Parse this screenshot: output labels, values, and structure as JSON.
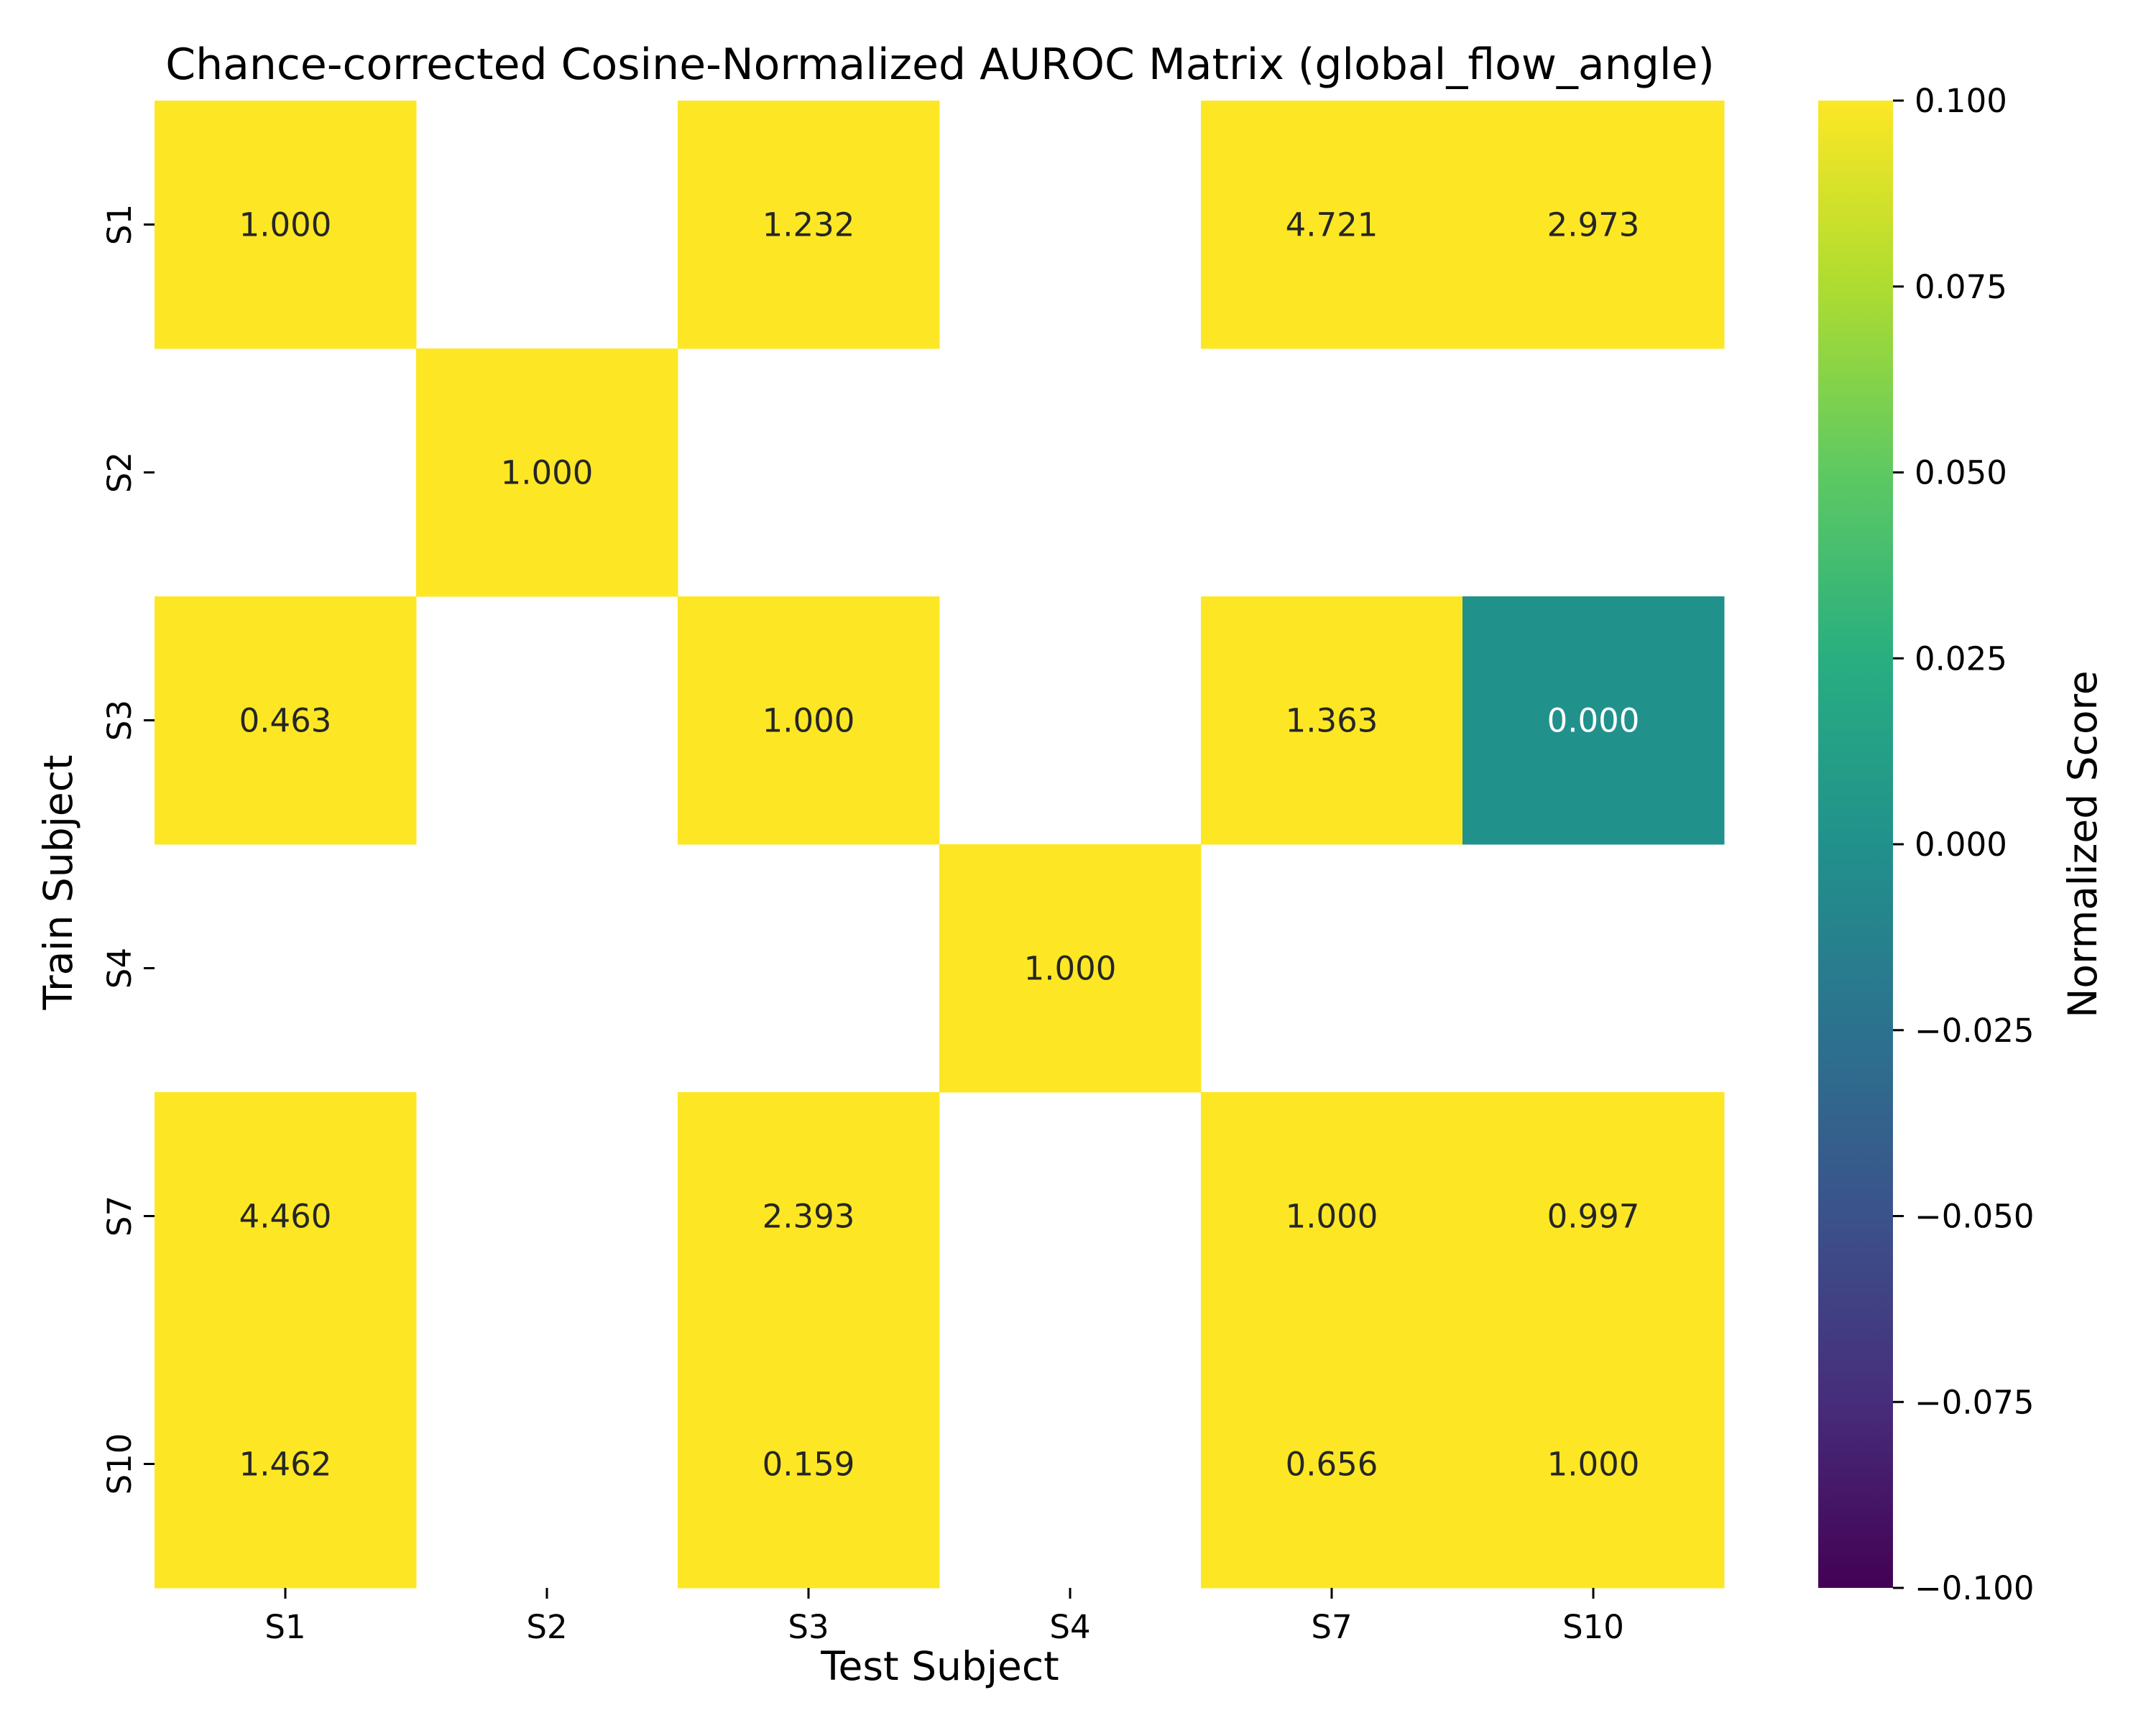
{
  "chart_data": {
    "type": "heatmap",
    "title": "Chance-corrected Cosine-Normalized AUROC Matrix (global_flow_angle)",
    "xlabel": "Test Subject",
    "ylabel": "Train Subject",
    "x_categories": [
      "S1",
      "S2",
      "S3",
      "S4",
      "S7",
      "S10"
    ],
    "y_categories": [
      "S1",
      "S2",
      "S3",
      "S4",
      "S7",
      "S10"
    ],
    "values": [
      [
        1.0,
        null,
        1.232,
        null,
        4.721,
        2.973
      ],
      [
        null,
        1.0,
        null,
        null,
        null,
        null
      ],
      [
        0.463,
        null,
        1.0,
        null,
        1.363,
        0.0
      ],
      [
        null,
        null,
        null,
        1.0,
        null,
        null
      ],
      [
        4.46,
        null,
        2.393,
        null,
        1.0,
        0.997
      ],
      [
        1.462,
        null,
        0.159,
        null,
        0.656,
        1.0
      ]
    ],
    "cell_labels": [
      [
        "1.000",
        "",
        "1.232",
        "",
        "4.721",
        "2.973"
      ],
      [
        "",
        "1.000",
        "",
        "",
        "",
        ""
      ],
      [
        "0.463",
        "",
        "1.000",
        "",
        "1.363",
        "0.000"
      ],
      [
        "",
        "",
        "",
        "1.000",
        "",
        ""
      ],
      [
        "4.460",
        "",
        "2.393",
        "",
        "1.000",
        "0.997"
      ],
      [
        "1.462",
        "",
        "0.159",
        "",
        "0.656",
        "1.000"
      ]
    ],
    "colormap": "viridis",
    "vmin": -0.1,
    "vmax": 0.1,
    "colorbar": {
      "label": "Normalized Score",
      "ticks": [
        0.1,
        0.075,
        0.05,
        0.025,
        0.0,
        -0.025,
        -0.05,
        -0.075,
        -0.1
      ],
      "tick_labels": [
        "0.100",
        "0.075",
        "0.050",
        "0.025",
        "0.000",
        "−0.025",
        "−0.050",
        "−0.075",
        "−0.100"
      ]
    },
    "missing_cells": "blank"
  }
}
